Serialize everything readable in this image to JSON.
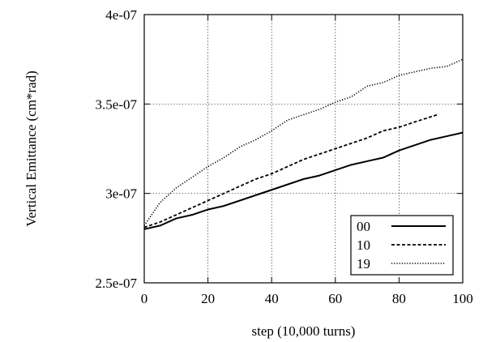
{
  "chart_data": {
    "type": "line",
    "title": "",
    "xlabel": "step (10,000 turns)",
    "ylabel": "Vertical Emittance (cm*rad)",
    "xlim": [
      0,
      100
    ],
    "ylim": [
      2.5e-07,
      4e-07
    ],
    "xticks": [
      0,
      20,
      40,
      60,
      80,
      100
    ],
    "xtick_labels": [
      "0",
      "20",
      "40",
      "60",
      "80",
      "100"
    ],
    "yticks": [
      2.5e-07,
      3e-07,
      3.5e-07,
      4e-07
    ],
    "ytick_labels": [
      "2.5e-07",
      "3e-07",
      "3.5e-07",
      "4e-07"
    ],
    "grid": true,
    "legend_position": "bottom-right",
    "series": [
      {
        "name": "00",
        "line_style": "solid",
        "color": "#000000",
        "x": [
          0,
          5,
          10,
          15,
          20,
          25,
          30,
          35,
          40,
          45,
          50,
          55,
          60,
          65,
          70,
          75,
          80,
          85,
          90,
          95,
          100
        ],
        "y": [
          2.8e-07,
          2.82e-07,
          2.86e-07,
          2.88e-07,
          2.91e-07,
          2.93e-07,
          2.96e-07,
          2.99e-07,
          3.02e-07,
          3.05e-07,
          3.08e-07,
          3.1e-07,
          3.13e-07,
          3.16e-07,
          3.18e-07,
          3.2e-07,
          3.24e-07,
          3.27e-07,
          3.3e-07,
          3.32e-07,
          3.34e-07
        ]
      },
      {
        "name": "10",
        "line_style": "dashed",
        "color": "#000000",
        "x": [
          0,
          5,
          10,
          15,
          20,
          25,
          30,
          35,
          40,
          45,
          50,
          55,
          60,
          65,
          70,
          75,
          80,
          85,
          92
        ],
        "y": [
          2.81e-07,
          2.84e-07,
          2.88e-07,
          2.92e-07,
          2.96e-07,
          3e-07,
          3.04e-07,
          3.08e-07,
          3.11e-07,
          3.15e-07,
          3.19e-07,
          3.22e-07,
          3.25e-07,
          3.28e-07,
          3.31e-07,
          3.35e-07,
          3.37e-07,
          3.4e-07,
          3.44e-07
        ]
      },
      {
        "name": "19",
        "line_style": "dotted",
        "color": "#000000",
        "x": [
          0,
          5,
          10,
          15,
          20,
          25,
          30,
          35,
          40,
          45,
          50,
          55,
          60,
          65,
          70,
          75,
          80,
          85,
          90,
          95,
          100
        ],
        "y": [
          2.82e-07,
          2.95e-07,
          3.03e-07,
          3.09e-07,
          3.15e-07,
          3.2e-07,
          3.26e-07,
          3.3e-07,
          3.35e-07,
          3.41e-07,
          3.44e-07,
          3.47e-07,
          3.51e-07,
          3.54e-07,
          3.6e-07,
          3.62e-07,
          3.66e-07,
          3.68e-07,
          3.7e-07,
          3.71e-07,
          3.75e-07
        ]
      }
    ]
  }
}
